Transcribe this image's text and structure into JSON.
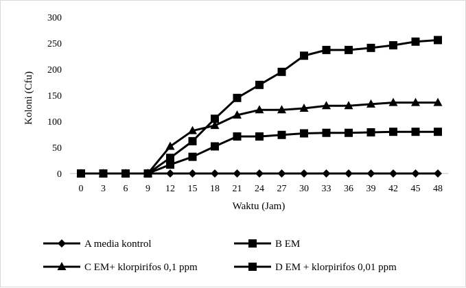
{
  "chart_data": {
    "type": "line",
    "xlabel": "Waktu (Jam)",
    "ylabel": "Koloni (Cfu)",
    "x": [
      "0",
      "3",
      "6",
      "9",
      "12",
      "15",
      "18",
      "21",
      "24",
      "27",
      "30",
      "33",
      "36",
      "39",
      "42",
      "45",
      "48"
    ],
    "ylim": [
      0,
      300
    ],
    "yticks": [
      "0",
      "50",
      "100",
      "150",
      "200",
      "250",
      "300"
    ],
    "grid": false,
    "legend_position": "bottom",
    "series": [
      {
        "name": "A media kontrol",
        "marker": "diamond",
        "values": [
          0,
          0,
          0,
          0,
          0,
          0,
          0,
          0,
          0,
          0,
          0,
          0,
          0,
          0,
          0,
          0,
          0
        ]
      },
      {
        "name": "B EM",
        "marker": "square",
        "values": [
          0,
          0,
          0,
          0,
          30,
          62,
          105,
          145,
          170,
          195,
          226,
          237,
          237,
          241,
          246,
          253,
          256
        ]
      },
      {
        "name": "C EM+ klorpirifos 0,1 ppm",
        "marker": "triangle",
        "values": [
          0,
          0,
          0,
          0,
          52,
          82,
          92,
          112,
          122,
          122,
          125,
          130,
          130,
          133,
          136,
          136,
          136
        ]
      },
      {
        "name": "D EM + klorpirifos 0,01 ppm",
        "marker": "square",
        "values": [
          0,
          0,
          0,
          0,
          17,
          32,
          52,
          71,
          71,
          74,
          77,
          78,
          78,
          79,
          80,
          80,
          80
        ]
      }
    ],
    "color": "#000000"
  }
}
